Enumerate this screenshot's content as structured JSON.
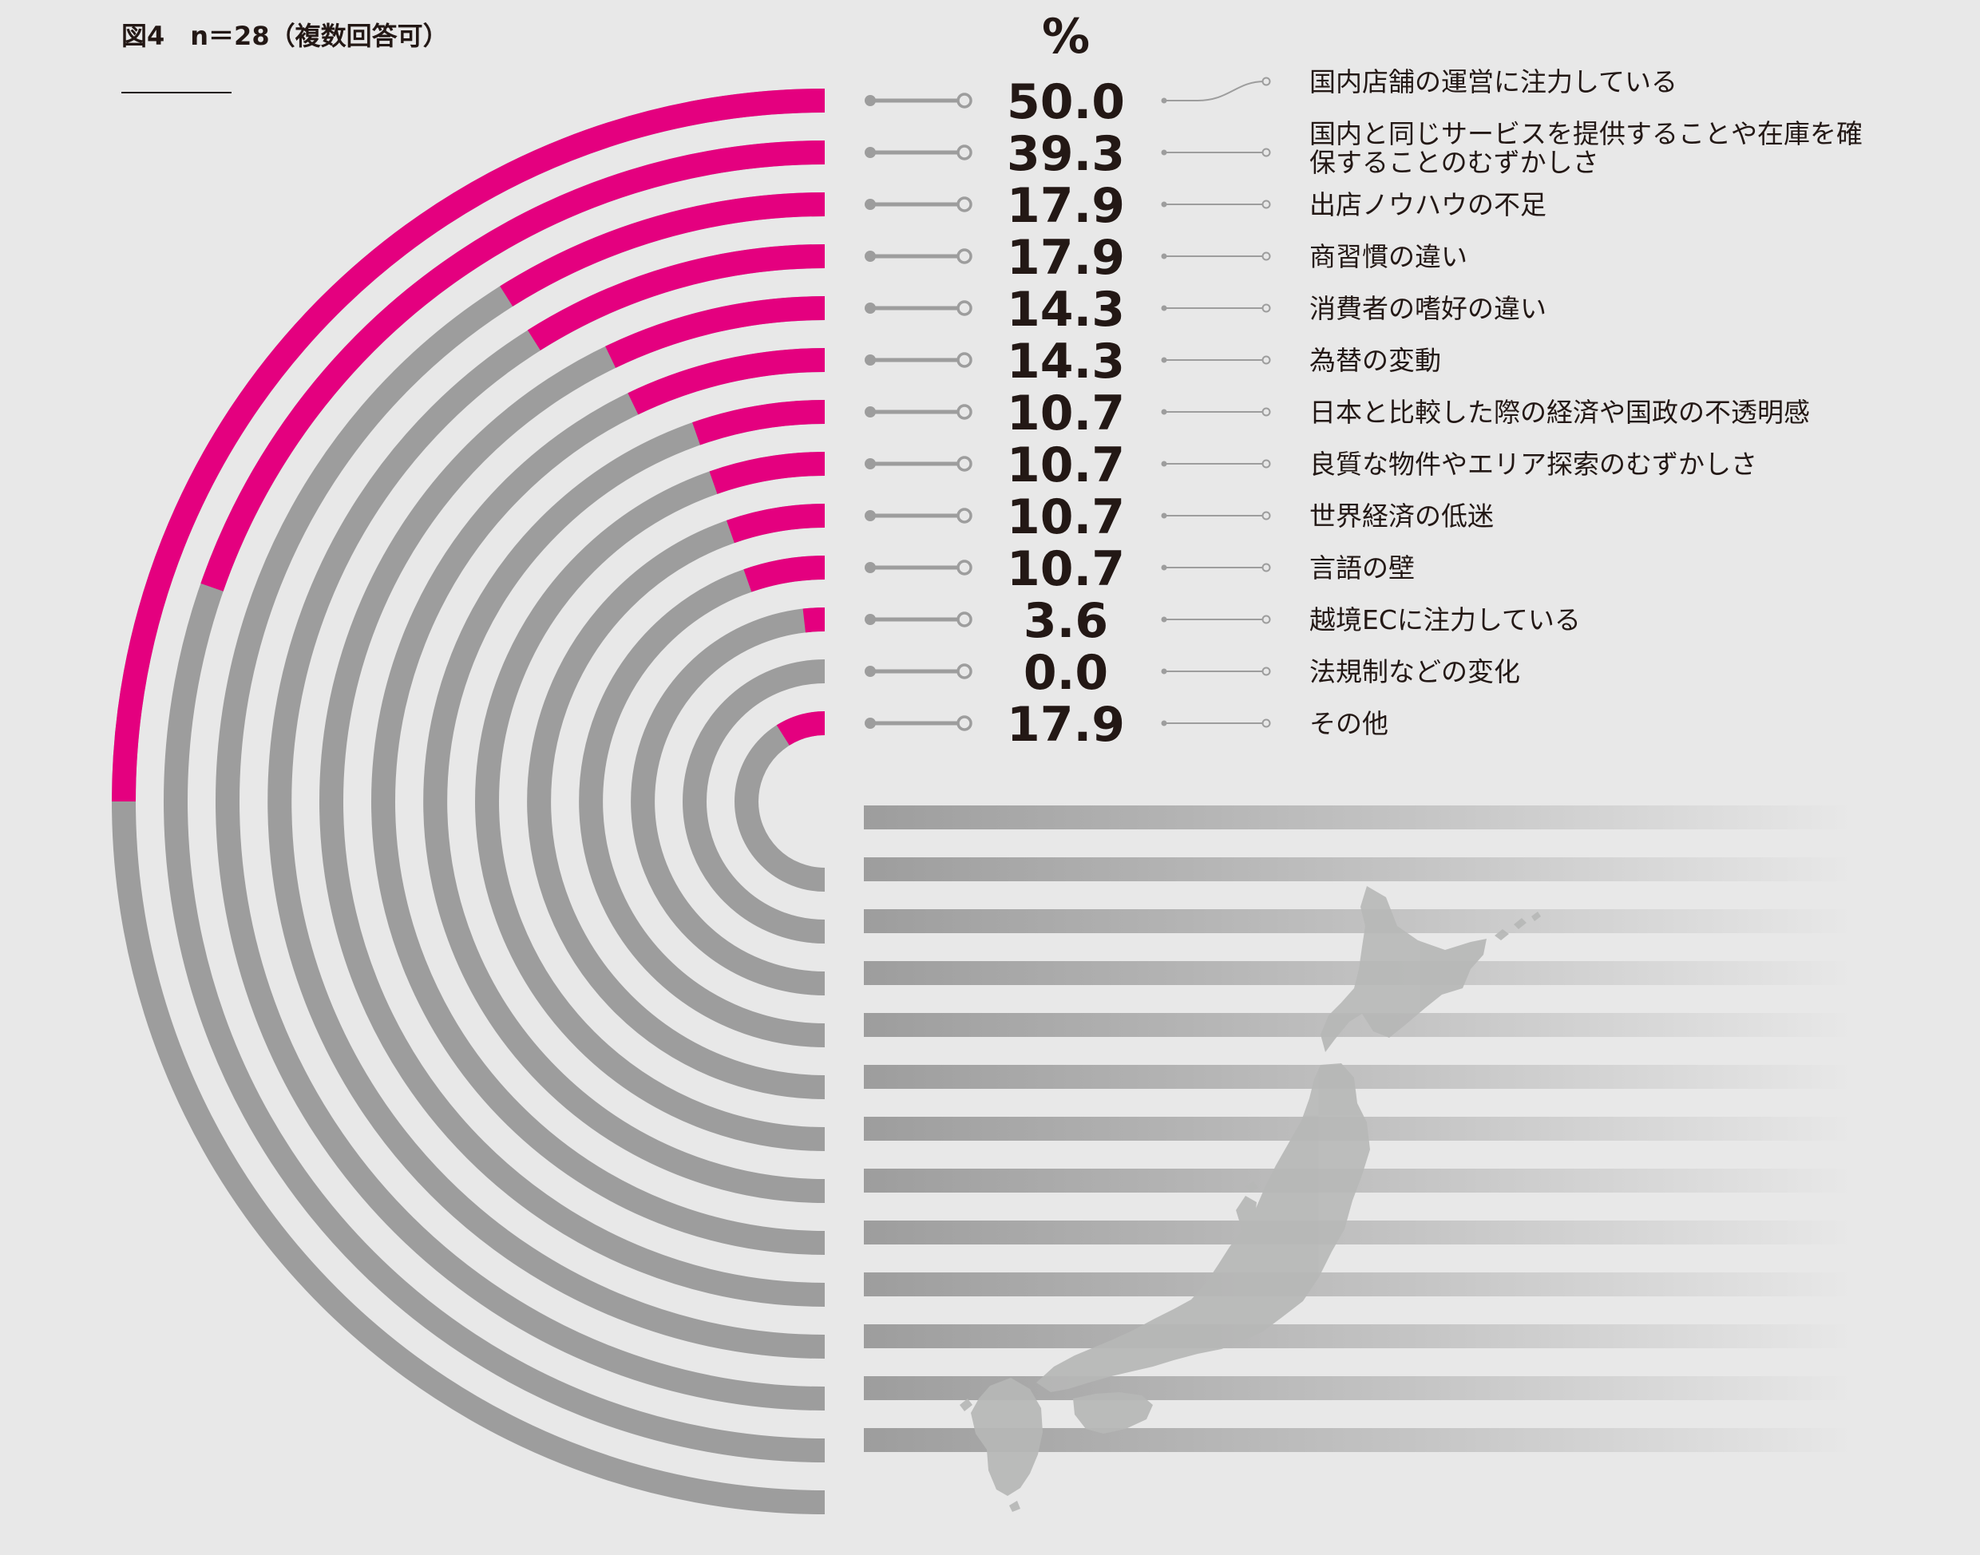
{
  "figure_label": "図4　n＝28（複数回答可）",
  "colors": {
    "accent": "#e4007f",
    "track": "#9d9d9d",
    "background": "#e8e8e8",
    "text": "#231815",
    "connector": "#9d9d9d",
    "japan_map": "#b7b8b7"
  },
  "decorative": {
    "japan_map_icon": "japan-map-icon"
  },
  "chart_data": {
    "type": "bar",
    "style": "radial half-ring bar chart",
    "unit": "%",
    "range": [
      0,
      100
    ],
    "categories": [
      "国内店舗の運営に注力している",
      "国内と同じサービスを提供することや在庫を確保することのむずかしさ",
      "出店ノウハウの不足",
      "商習慣の違い",
      "消費者の嗜好の違い",
      "為替の変動",
      "日本と比較した際の経済や国政の不透明感",
      "良質な物件やエリア探索のむずかしさ",
      "世界経済の低迷",
      "言語の壁",
      "越境ECに注力している",
      "法規制などの変化",
      "その他"
    ],
    "category_lines": [
      [
        "国内店舗の運営に注力している"
      ],
      [
        "国内と同じサービスを提供することや在庫を確",
        "保することのむずかしさ"
      ],
      [
        "出店ノウハウの不足"
      ],
      [
        "商習慣の違い"
      ],
      [
        "消費者の嗜好の違い"
      ],
      [
        "為替の変動"
      ],
      [
        "日本と比較した際の経済や国政の不透明感"
      ],
      [
        "良質な物件やエリア探索のむずかしさ"
      ],
      [
        "世界経済の低迷"
      ],
      [
        "言語の壁"
      ],
      [
        "越境ECに注力している"
      ],
      [
        "法規制などの変化"
      ],
      [
        "その他"
      ]
    ],
    "values": [
      50.0,
      39.3,
      17.9,
      17.9,
      14.3,
      14.3,
      10.7,
      10.7,
      10.7,
      10.7,
      3.6,
      0.0,
      17.9
    ],
    "value_labels": [
      "50.0",
      "39.3",
      "17.9",
      "17.9",
      "14.3",
      "14.3",
      "10.7",
      "10.7",
      "10.7",
      "10.7",
      "3.6",
      "0.0",
      "17.9"
    ],
    "grid": false,
    "legend": "none"
  }
}
